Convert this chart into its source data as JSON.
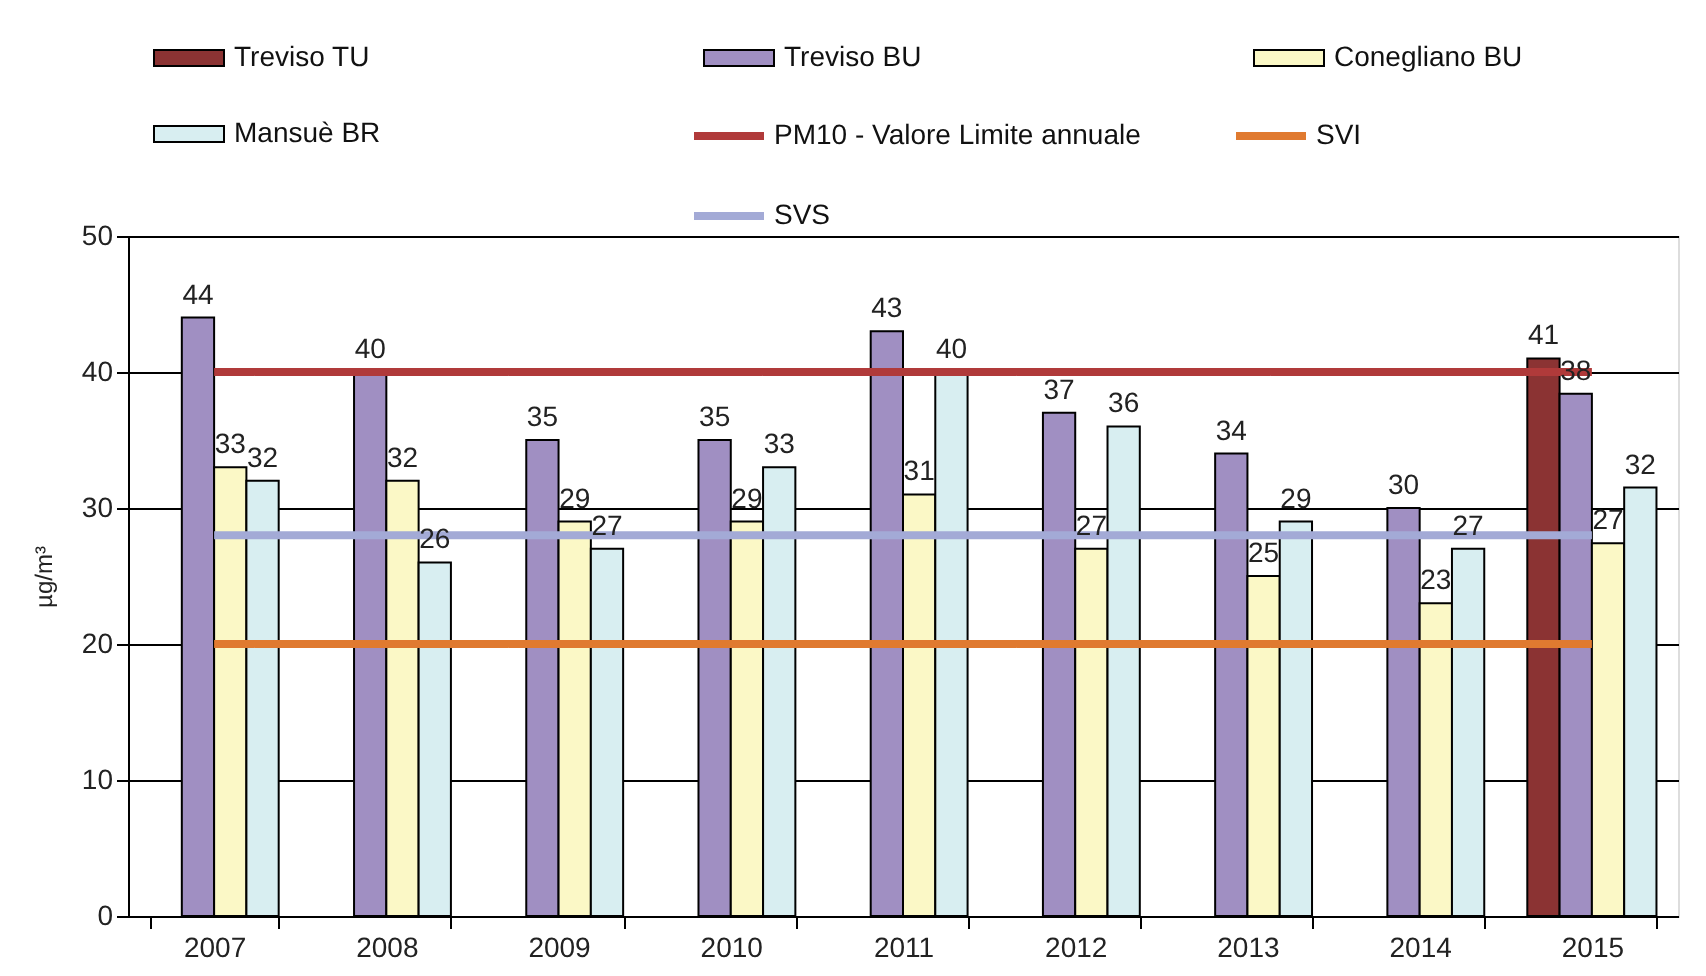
{
  "chart_data": {
    "type": "bar",
    "categories": [
      "2007",
      "2008",
      "2009",
      "2010",
      "2011",
      "2012",
      "2013",
      "2014",
      "2015"
    ],
    "ylabel": "µg/m³",
    "ylim": [
      0,
      50
    ],
    "yticks": [
      0,
      10,
      20,
      30,
      40,
      50
    ],
    "grid": "y",
    "legend": "top",
    "series": [
      {
        "name": "Treviso TU",
        "color": "#8b3333",
        "values": [
          null,
          null,
          null,
          null,
          null,
          null,
          null,
          null,
          41
        ],
        "value_labels": [
          null,
          null,
          null,
          null,
          null,
          null,
          null,
          null,
          "41"
        ]
      },
      {
        "name": "Treviso BU",
        "color": "#a08fc2",
        "values": [
          44,
          40,
          35,
          35,
          43,
          37,
          34,
          30,
          38.4
        ],
        "value_labels": [
          "44",
          "40",
          "35",
          "35",
          "43",
          "37",
          "34",
          "30",
          "38"
        ]
      },
      {
        "name": "Conegliano BU",
        "color": "#fbf8c6",
        "values": [
          33,
          32,
          29,
          29,
          31,
          27,
          25,
          23,
          27.4
        ],
        "value_labels": [
          "33",
          "32",
          "29",
          "29",
          "31",
          "27",
          "25",
          "23",
          "27"
        ]
      },
      {
        "name": "Mansuè BR",
        "color": "#d8eef1",
        "values": [
          32,
          26,
          27,
          33,
          40,
          36,
          29,
          27,
          31.5
        ],
        "value_labels": [
          "32",
          "26",
          "27",
          "33",
          "40",
          "36",
          "29",
          "27",
          "32"
        ]
      }
    ],
    "ref_lines": [
      {
        "axis": "y",
        "value": 40,
        "label": "PM10 - Valore Limite annuale",
        "color": "#b03a3a"
      },
      {
        "axis": "y",
        "value": 20,
        "label": "SVI",
        "color": "#e07a30"
      },
      {
        "axis": "y",
        "value": 28,
        "label": "SVS",
        "color": "#a3aad6"
      }
    ]
  }
}
